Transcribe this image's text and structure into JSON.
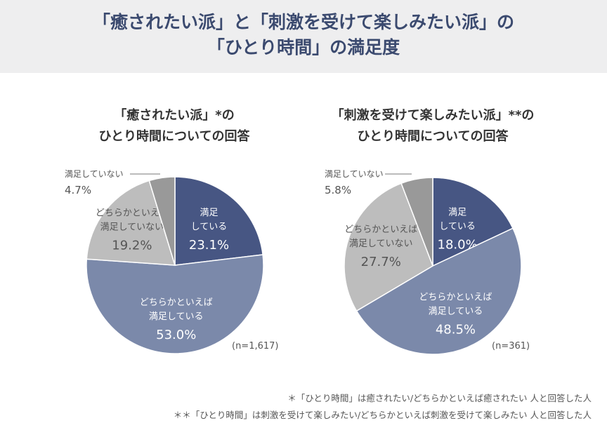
{
  "title": {
    "line1": "「癒されたい派」と「刺激を受けて楽しみたい派」の",
    "line2": "「ひとり時間」の満足度"
  },
  "colors": {
    "banner_bg": "#eeeeef",
    "title": "#3b4a6f",
    "satisfied": "#475683",
    "somewhat_satisfied": "#7b89aa",
    "somewhat_not": "#bdbdbd",
    "not_satisfied": "#999999"
  },
  "chart_data": [
    {
      "type": "pie",
      "title_line1": "「癒されたい派」*の",
      "title_line2": "ひとり時間についての回答",
      "n_label": "(n=1,617)",
      "slices": [
        {
          "label_line1": "満足",
          "label_line2": "している",
          "value": 23.1,
          "value_label": "23.1%"
        },
        {
          "label_line1": "どちらかといえば",
          "label_line2": "満足している",
          "value": 53.0,
          "value_label": "53.0%"
        },
        {
          "label_line1": "どちらかといえば",
          "label_line2": "満足していない",
          "value": 19.2,
          "value_label": "19.2%"
        },
        {
          "label_line1": "満足していない",
          "label_line2": "",
          "value": 4.7,
          "value_label": "4.7%"
        }
      ]
    },
    {
      "type": "pie",
      "title_line1": "「刺激を受けて楽しみたい派」**の",
      "title_line2": "ひとり時間についての回答",
      "n_label": "(n=361)",
      "slices": [
        {
          "label_line1": "満足",
          "label_line2": "している",
          "value": 18.0,
          "value_label": "18.0%"
        },
        {
          "label_line1": "どちらかといえば",
          "label_line2": "満足している",
          "value": 48.5,
          "value_label": "48.5%"
        },
        {
          "label_line1": "どちらかといえば",
          "label_line2": "満足していない",
          "value": 27.7,
          "value_label": "27.7%"
        },
        {
          "label_line1": "満足していない",
          "label_line2": "",
          "value": 5.8,
          "value_label": "5.8%"
        }
      ]
    }
  ],
  "footnotes": {
    "note1": "＊「ひとり時間」は癒されたい/どちらかといえば癒されたい 人と回答した人",
    "note2": "＊＊「ひとり時間」は刺激を受けて楽しみたい/どちらかといえば刺激を受けて楽しみたい 人と回答した人"
  }
}
